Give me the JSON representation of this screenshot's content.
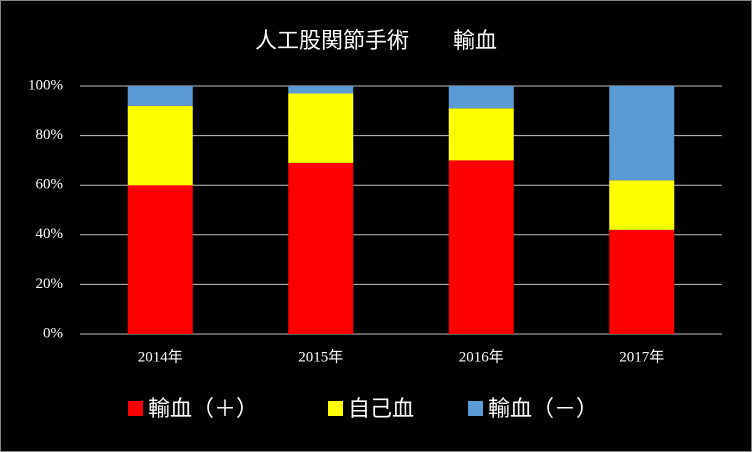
{
  "chart_data": {
    "type": "stacked_bar",
    "title": "人工股関節手術　　輸血",
    "categories": [
      "2014年",
      "2015年",
      "2016年",
      "2017年"
    ],
    "series": [
      {
        "name": "輸血（＋）",
        "color": "#ff0000",
        "values": [
          60,
          69,
          70,
          42
        ]
      },
      {
        "name": "自己血",
        "color": "#ffff00",
        "values": [
          32,
          28,
          21,
          20
        ]
      },
      {
        "name": "輸血（－）",
        "color": "#5b9bd5",
        "values": [
          8,
          3,
          9,
          38
        ]
      }
    ],
    "ylim": [
      0,
      100
    ],
    "yticks": [
      {
        "value": 0,
        "label": "0%"
      },
      {
        "value": 20,
        "label": "20%"
      },
      {
        "value": 40,
        "label": "40%"
      },
      {
        "value": 60,
        "label": "60%"
      },
      {
        "value": 80,
        "label": "80%"
      },
      {
        "value": 100,
        "label": "100%"
      }
    ],
    "grid": true,
    "legend": "bottom"
  }
}
